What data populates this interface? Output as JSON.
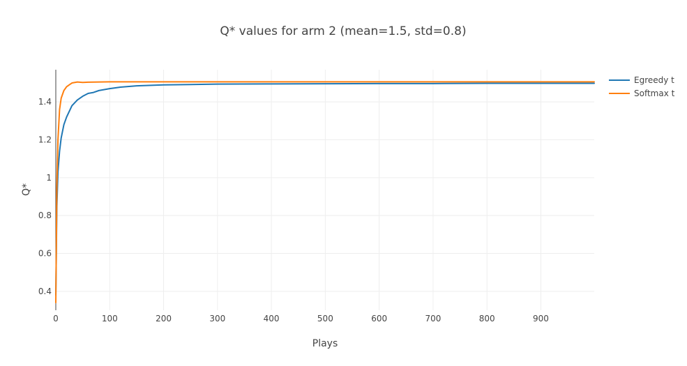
{
  "chart_data": {
    "type": "line",
    "title": "Q* values for arm 2 (mean=1.5, std=0.8)",
    "xlabel": "Plays",
    "ylabel": "Q*",
    "xlim": [
      0,
      999
    ],
    "ylim": [
      0.3,
      1.57
    ],
    "xticks": [
      0,
      100,
      200,
      300,
      400,
      500,
      600,
      700,
      800,
      900
    ],
    "yticks": [
      0.4,
      0.6,
      0.8,
      1.0,
      1.2,
      1.4
    ],
    "ytick_labels": [
      "0.4",
      "0.6",
      "0.8",
      "1",
      "1.2",
      "1.4"
    ],
    "grid": true,
    "legend_position": "top-right",
    "series": [
      {
        "name": "Egreedy t",
        "color": "#1f77b4",
        "x": [
          0,
          2,
          4,
          7,
          10,
          15,
          20,
          30,
          40,
          50,
          60,
          70,
          80,
          90,
          100,
          120,
          150,
          200,
          250,
          300,
          400,
          500,
          600,
          700,
          800,
          900,
          999
        ],
        "y": [
          0.38,
          0.85,
          1.03,
          1.14,
          1.21,
          1.28,
          1.32,
          1.38,
          1.41,
          1.43,
          1.445,
          1.45,
          1.46,
          1.465,
          1.47,
          1.478,
          1.485,
          1.49,
          1.492,
          1.494,
          1.495,
          1.496,
          1.497,
          1.497,
          1.498,
          1.498,
          1.498
        ]
      },
      {
        "name": "Softmax t",
        "color": "#ff7f0e",
        "x": [
          0,
          2,
          4,
          7,
          10,
          15,
          20,
          25,
          30,
          40,
          50,
          60,
          80,
          100,
          150,
          200,
          300,
          400,
          500,
          600,
          700,
          800,
          900,
          999
        ],
        "y": [
          0.34,
          0.95,
          1.2,
          1.36,
          1.42,
          1.46,
          1.48,
          1.49,
          1.5,
          1.505,
          1.503,
          1.504,
          1.505,
          1.506,
          1.506,
          1.506,
          1.506,
          1.506,
          1.506,
          1.506,
          1.506,
          1.506,
          1.506,
          1.506
        ]
      }
    ]
  }
}
